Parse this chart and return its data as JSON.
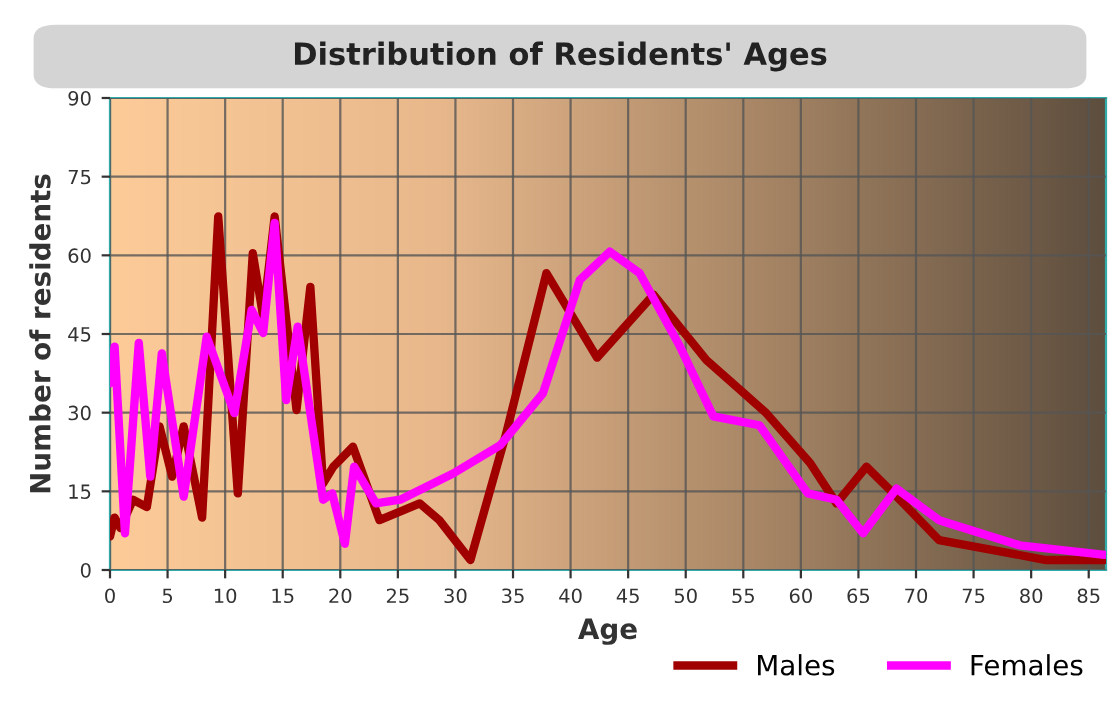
{
  "chart_data": {
    "type": "line",
    "title": "Distribution of Residents' Ages",
    "xlabel": "Age",
    "ylabel": "Number of residents",
    "xlim": [
      0,
      86.5
    ],
    "ylim": [
      0,
      90
    ],
    "xticks": [
      0,
      5,
      10,
      15,
      20,
      25,
      30,
      35,
      40,
      45,
      50,
      55,
      60,
      65,
      70,
      75,
      80,
      85
    ],
    "yticks": [
      0,
      15,
      30,
      45,
      60,
      75,
      90
    ],
    "grid": true,
    "legend": "bottom right",
    "line_style": "solid",
    "marker": "none",
    "series": [
      {
        "name": "Males",
        "color": "#a00000",
        "x": [
          0,
          0.4,
          0.9,
          2,
          3.2,
          4.3,
          5.4,
          6.4,
          8,
          9.4,
          11.1,
          12.4,
          13.3,
          14.3,
          16.2,
          17.4,
          18.5,
          19.4,
          21.1,
          23.4,
          26.9,
          28.6,
          31.3,
          34.4,
          37.9,
          42.3,
          47.2,
          51.8,
          54.7,
          57,
          60.8,
          63.1,
          65.7,
          68.6,
          72,
          76.7,
          81.3,
          86.4
        ],
        "values": [
          6.4,
          10,
          8,
          13.4,
          12,
          27.4,
          17.8,
          27.4,
          10,
          67.4,
          14.6,
          60.4,
          48.3,
          67.4,
          30.5,
          54,
          16.5,
          19.7,
          23.5,
          9.5,
          12.7,
          9.5,
          1.9,
          26,
          56.6,
          40.5,
          52.5,
          40,
          34.4,
          29.9,
          20.4,
          12.7,
          19.7,
          13.4,
          5.7,
          3.8,
          1.9,
          1.9
        ]
      },
      {
        "name": "Females",
        "color": "#ff00ff",
        "x": [
          0,
          0.4,
          1.3,
          2.5,
          3.5,
          4.5,
          6.4,
          8.4,
          10.8,
          12.3,
          13.3,
          14.3,
          15.3,
          16.3,
          18.5,
          19.3,
          20.4,
          21.2,
          23.1,
          25.2,
          29.8,
          33.9,
          37.6,
          40.8,
          43.4,
          46,
          49.5,
          52.4,
          56.4,
          60.6,
          63.1,
          65.4,
          68.3,
          72,
          79,
          86.4
        ],
        "values": [
          35.6,
          42.6,
          7,
          43.3,
          17.8,
          41.3,
          14,
          44.5,
          29.9,
          49.6,
          45.2,
          66.2,
          32.4,
          46.4,
          13.4,
          14.6,
          5,
          19.7,
          12.7,
          13.4,
          18.4,
          23.8,
          33.7,
          55.3,
          60.7,
          56.6,
          42.6,
          29.3,
          27.6,
          14.6,
          13.4,
          7,
          15.5,
          9.5,
          4.7,
          2.9
        ]
      }
    ]
  }
}
